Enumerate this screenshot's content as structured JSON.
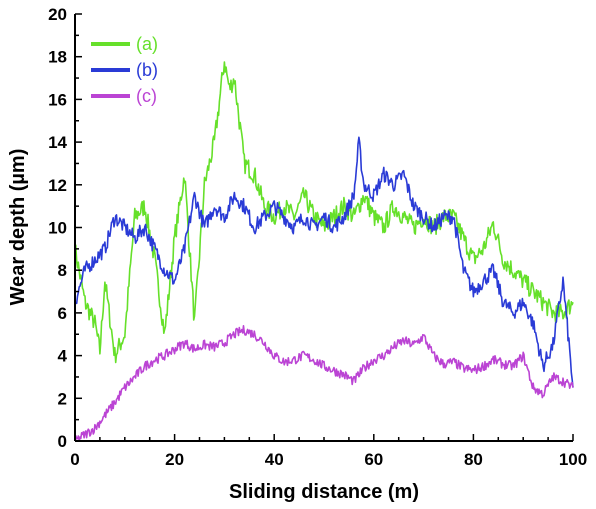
{
  "chart_data": {
    "type": "line",
    "xlabel": "Sliding distance (m)",
    "ylabel": "Wear depth (µm)",
    "xlim": [
      0,
      100
    ],
    "ylim": [
      0,
      20
    ],
    "xticks": [
      "0",
      "20",
      "40",
      "60",
      "80",
      "100"
    ],
    "yticks": [
      "0",
      "2",
      "4",
      "6",
      "8",
      "10",
      "12",
      "14",
      "16",
      "18",
      "20"
    ],
    "grid": false,
    "legend_position": "top-left",
    "series": [
      {
        "name": "(a)",
        "color": "#66e02a",
        "x": [
          0,
          2,
          4,
          5,
          6,
          8,
          10,
          12,
          14,
          16,
          18,
          20,
          22,
          24,
          26,
          28,
          30,
          31,
          32,
          34,
          36,
          38,
          40,
          42,
          44,
          46,
          48,
          50,
          52,
          54,
          56,
          58,
          60,
          62,
          64,
          66,
          68,
          70,
          72,
          74,
          76,
          78,
          80,
          82,
          84,
          86,
          88,
          90,
          92,
          94,
          96,
          98,
          100
        ],
        "y": [
          9.0,
          6.5,
          5.5,
          4.2,
          7.5,
          4.0,
          5.0,
          10.5,
          11.0,
          8.5,
          5.0,
          9.5,
          12.5,
          5.5,
          12.0,
          14.0,
          17.8,
          16.5,
          17.0,
          13.0,
          12.5,
          11.0,
          10.5,
          11.0,
          10.5,
          11.5,
          10.5,
          10.0,
          10.5,
          11.0,
          10.5,
          11.5,
          10.5,
          10.0,
          11.0,
          10.5,
          10.0,
          10.5,
          10.0,
          10.5,
          10.5,
          9.5,
          8.5,
          9.0,
          10.2,
          8.5,
          8.0,
          7.5,
          7.0,
          6.5,
          6.0,
          6.0,
          6.5
        ]
      },
      {
        "name": "(b)",
        "color": "#2a3bd6",
        "x": [
          0,
          2,
          4,
          6,
          8,
          10,
          12,
          14,
          16,
          18,
          20,
          22,
          24,
          26,
          28,
          30,
          32,
          34,
          36,
          38,
          40,
          42,
          44,
          46,
          48,
          50,
          52,
          54,
          56,
          57,
          58,
          60,
          62,
          64,
          66,
          68,
          70,
          72,
          74,
          76,
          78,
          80,
          82,
          84,
          86,
          88,
          90,
          92,
          94,
          96,
          98,
          100
        ],
        "y": [
          6.5,
          8.0,
          8.5,
          9.0,
          10.5,
          10.0,
          9.5,
          10.0,
          9.0,
          8.0,
          7.5,
          9.0,
          11.5,
          10.0,
          11.0,
          10.5,
          11.5,
          11.0,
          10.0,
          10.5,
          11.0,
          10.5,
          10.0,
          10.5,
          10.0,
          10.5,
          10.0,
          10.5,
          11.5,
          14.0,
          12.0,
          11.5,
          12.5,
          12.0,
          12.5,
          11.0,
          10.5,
          10.0,
          10.5,
          10.5,
          8.0,
          7.0,
          7.5,
          8.0,
          6.5,
          6.0,
          6.5,
          5.5,
          3.5,
          4.5,
          7.5,
          2.5
        ]
      },
      {
        "name": "(c)",
        "color": "#bb44d4",
        "x": [
          0,
          2,
          4,
          6,
          8,
          10,
          12,
          14,
          16,
          18,
          20,
          22,
          24,
          26,
          28,
          30,
          32,
          34,
          36,
          38,
          40,
          42,
          44,
          46,
          48,
          50,
          52,
          54,
          56,
          58,
          60,
          62,
          64,
          66,
          68,
          70,
          72,
          74,
          76,
          78,
          80,
          82,
          84,
          86,
          88,
          90,
          92,
          94,
          96,
          98,
          100
        ],
        "y": [
          0,
          0.3,
          0.6,
          1.2,
          1.8,
          2.5,
          3.0,
          3.5,
          3.8,
          4.0,
          4.3,
          4.6,
          4.3,
          4.5,
          4.4,
          4.6,
          5.0,
          5.2,
          5.0,
          4.6,
          4.0,
          3.7,
          3.8,
          4.0,
          3.8,
          3.5,
          3.3,
          3.1,
          2.8,
          3.4,
          3.8,
          4.0,
          4.4,
          4.7,
          4.5,
          4.9,
          4.0,
          3.6,
          3.7,
          3.4,
          3.3,
          3.5,
          3.8,
          3.6,
          3.5,
          4.0,
          2.5,
          2.2,
          3.0,
          2.8,
          2.5
        ]
      }
    ]
  }
}
